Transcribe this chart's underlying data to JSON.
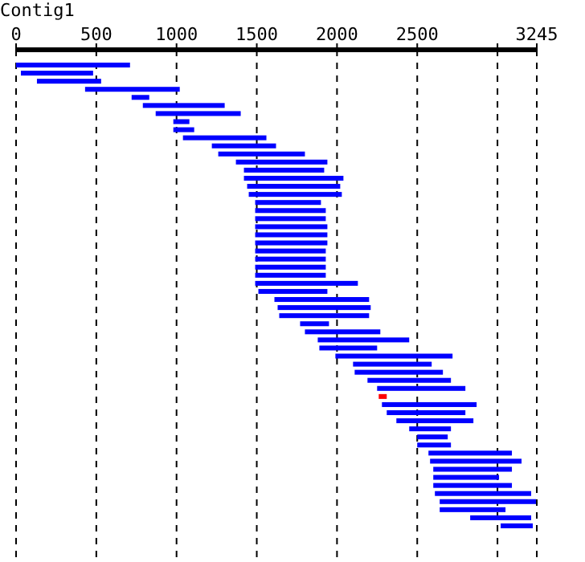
{
  "chart_data": {
    "type": "bar",
    "orientation": "horizontal",
    "title": "Contig1",
    "categories": [
      null,
      null,
      null,
      null,
      null,
      null,
      null,
      null,
      null,
      null,
      null,
      null,
      null,
      null,
      null,
      null,
      null,
      null,
      null,
      null,
      null,
      null,
      null,
      null,
      null,
      null,
      null,
      null,
      null,
      null,
      null,
      null,
      null,
      null,
      null,
      null,
      null,
      null,
      null,
      null,
      null,
      null,
      null,
      null,
      null,
      null,
      null,
      null,
      null,
      null,
      null,
      null,
      null,
      null,
      null,
      null,
      null,
      null
    ],
    "base": [
      0,
      30,
      130,
      430,
      720,
      790,
      870,
      980,
      980,
      1040,
      1220,
      1260,
      1370,
      1420,
      1420,
      1440,
      1450,
      1490,
      1490,
      1490,
      1490,
      1490,
      1490,
      1490,
      1490,
      1490,
      1490,
      1490,
      1510,
      1610,
      1630,
      1640,
      1770,
      1800,
      1880,
      1890,
      1990,
      2100,
      2110,
      2190,
      2250,
      2260,
      2280,
      2310,
      2370,
      2450,
      2500,
      2500,
      2570,
      2580,
      2600,
      2600,
      2600,
      2610,
      2640,
      2640,
      2830,
      3020
    ],
    "values": [
      710,
      450,
      400,
      590,
      110,
      510,
      530,
      100,
      130,
      520,
      400,
      540,
      570,
      500,
      620,
      580,
      580,
      410,
      440,
      440,
      450,
      450,
      450,
      440,
      440,
      440,
      440,
      640,
      430,
      590,
      580,
      560,
      180,
      470,
      570,
      360,
      730,
      490,
      550,
      520,
      550,
      50,
      590,
      490,
      480,
      260,
      190,
      210,
      520,
      570,
      490,
      410,
      490,
      600,
      600,
      410,
      380,
      200
    ],
    "colors": [
      "#0000ff",
      "#0000ff",
      "#0000ff",
      "#0000ff",
      "#0000ff",
      "#0000ff",
      "#0000ff",
      "#0000ff",
      "#0000ff",
      "#0000ff",
      "#0000ff",
      "#0000ff",
      "#0000ff",
      "#0000ff",
      "#0000ff",
      "#0000ff",
      "#0000ff",
      "#0000ff",
      "#0000ff",
      "#0000ff",
      "#0000ff",
      "#0000ff",
      "#0000ff",
      "#0000ff",
      "#0000ff",
      "#0000ff",
      "#0000ff",
      "#0000ff",
      "#0000ff",
      "#0000ff",
      "#0000ff",
      "#0000ff",
      "#0000ff",
      "#0000ff",
      "#0000ff",
      "#0000ff",
      "#0000ff",
      "#0000ff",
      "#0000ff",
      "#0000ff",
      "#0000ff",
      "#ff0000",
      "#0000ff",
      "#0000ff",
      "#0000ff",
      "#0000ff",
      "#0000ff",
      "#0000ff",
      "#0000ff",
      "#0000ff",
      "#0000ff",
      "#0000ff",
      "#0000ff",
      "#0000ff",
      "#0000ff",
      "#0000ff",
      "#0000ff",
      "#0000ff"
    ],
    "xlim": [
      0,
      3245
    ],
    "xticks": [
      0,
      500,
      1000,
      1500,
      2000,
      2500,
      {
        "value": 3000,
        "label": null
      },
      3245
    ],
    "grid": "x",
    "line_style": "dashed"
  }
}
